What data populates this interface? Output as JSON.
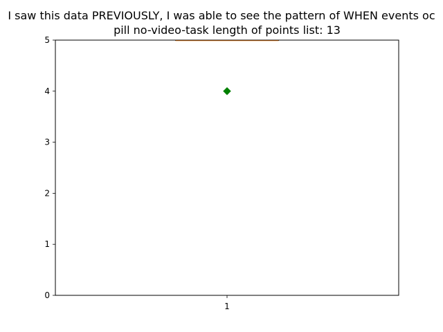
{
  "chart_data": {
    "type": "box",
    "title_lines": [
      "I saw this data PREVIOUSLY, I was able to see the pattern of WHEN events oc",
      "pill    no-video-task    length of points list: 13"
    ],
    "categories": [
      "1"
    ],
    "ylim": [
      0,
      5
    ],
    "yticks": [
      0,
      1,
      2,
      3,
      4,
      5
    ],
    "box": {
      "whisker_low": 5,
      "q1": 5,
      "median": 5,
      "q3": 5,
      "whisker_high": 5
    },
    "mean": 4,
    "colors": {
      "mean_marker": "#008000",
      "median_line": "#ff7f0e",
      "box": "#000000"
    },
    "grid": false
  }
}
